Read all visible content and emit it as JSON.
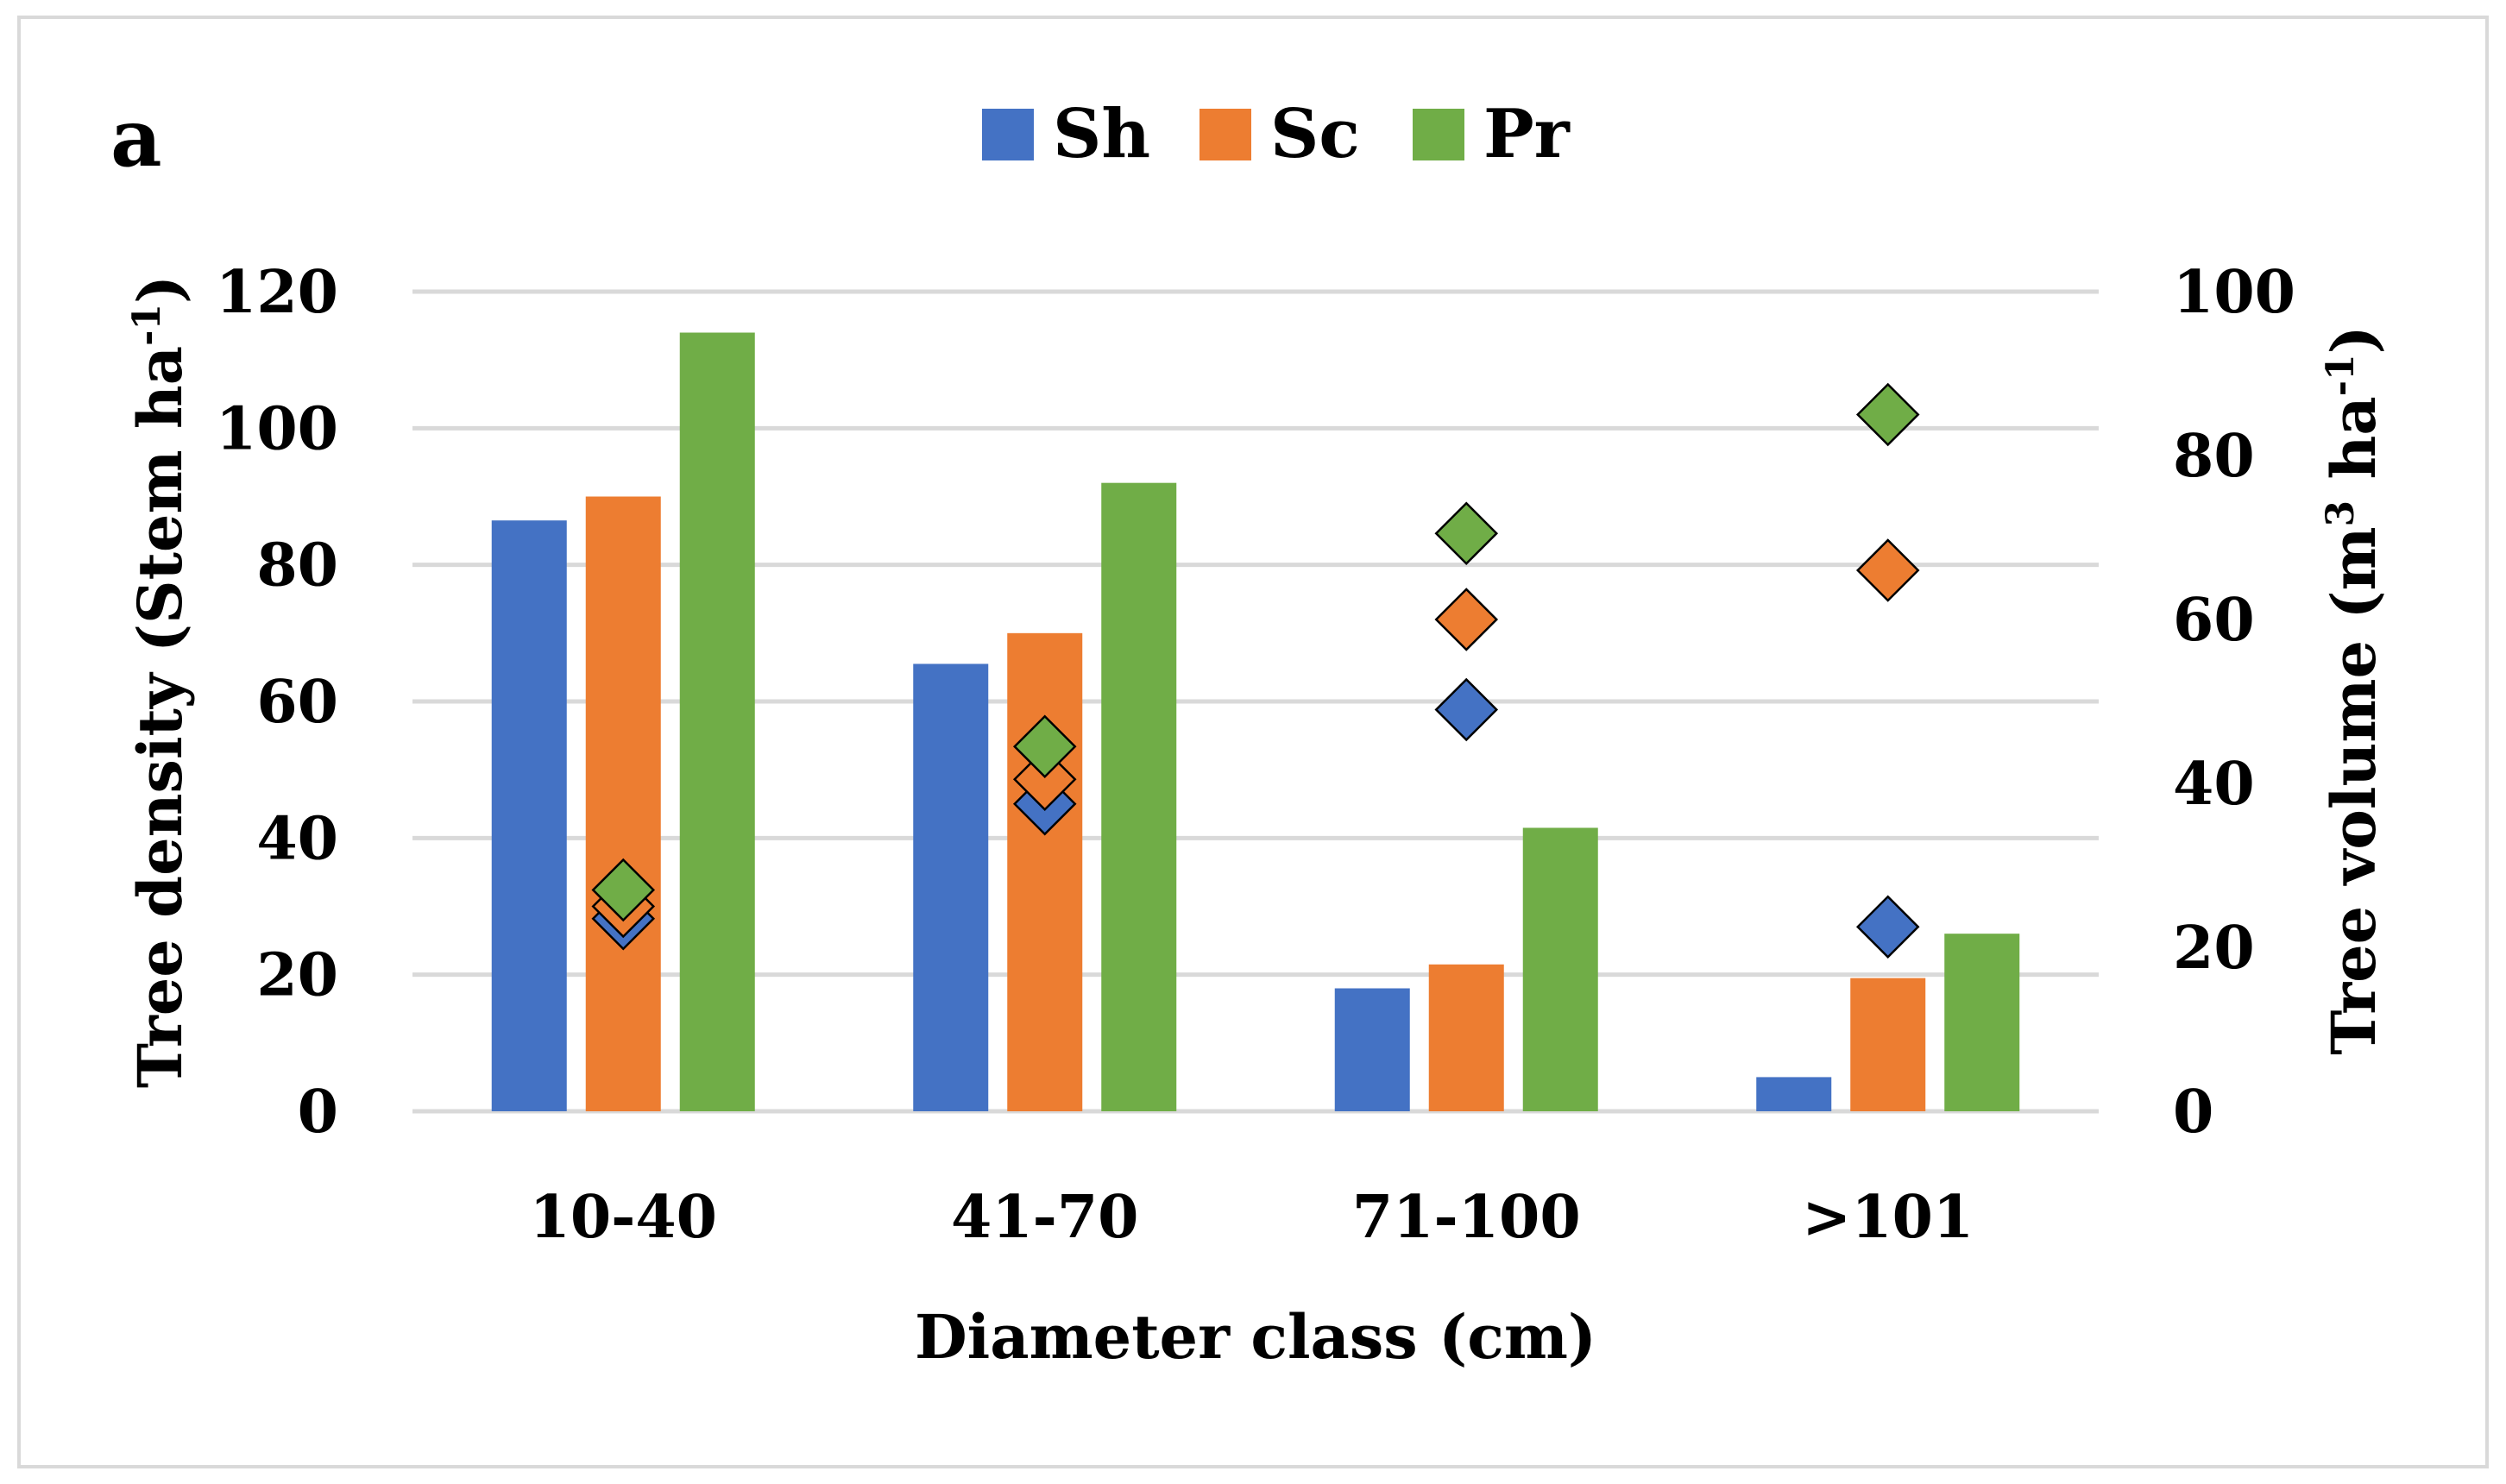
{
  "chart_data": {
    "type": "bar",
    "panel_label": "a",
    "title": "",
    "xlabel": "Diameter class (cm)",
    "ylabel": {
      "main": "Tree density (Stem ha",
      "sup": "-1",
      "end": ")"
    },
    "y2label": {
      "main": "Tree volume (m",
      "sup1": "3",
      "mid": " ha",
      "sup2": "-1",
      "end": ")"
    },
    "categories": [
      "10-40",
      "41-70",
      "71-100",
      ">101"
    ],
    "ylim": [
      0,
      120
    ],
    "yticks": [
      "0",
      "20",
      "40",
      "60",
      "80",
      "100",
      "120"
    ],
    "y2lim": [
      0,
      100
    ],
    "y2ticks": [
      "0",
      "20",
      "40",
      "60",
      "80",
      "100"
    ],
    "grid": true,
    "legend_position": "top-center",
    "series": [
      {
        "name": "Sh",
        "color": "#4472c4",
        "density": [
          86.5,
          65.5,
          18,
          5
        ],
        "volume": [
          23.5,
          37.5,
          49,
          22.5
        ]
      },
      {
        "name": "Sc",
        "color": "#ed7d31",
        "density": [
          90,
          70,
          21.5,
          19.5
        ],
        "volume": [
          25,
          40.5,
          60,
          66
        ]
      },
      {
        "name": "Pr",
        "color": "#70ad47",
        "density": [
          114,
          92,
          41.5,
          26
        ],
        "volume": [
          27,
          44.5,
          70.5,
          85
        ]
      }
    ]
  }
}
